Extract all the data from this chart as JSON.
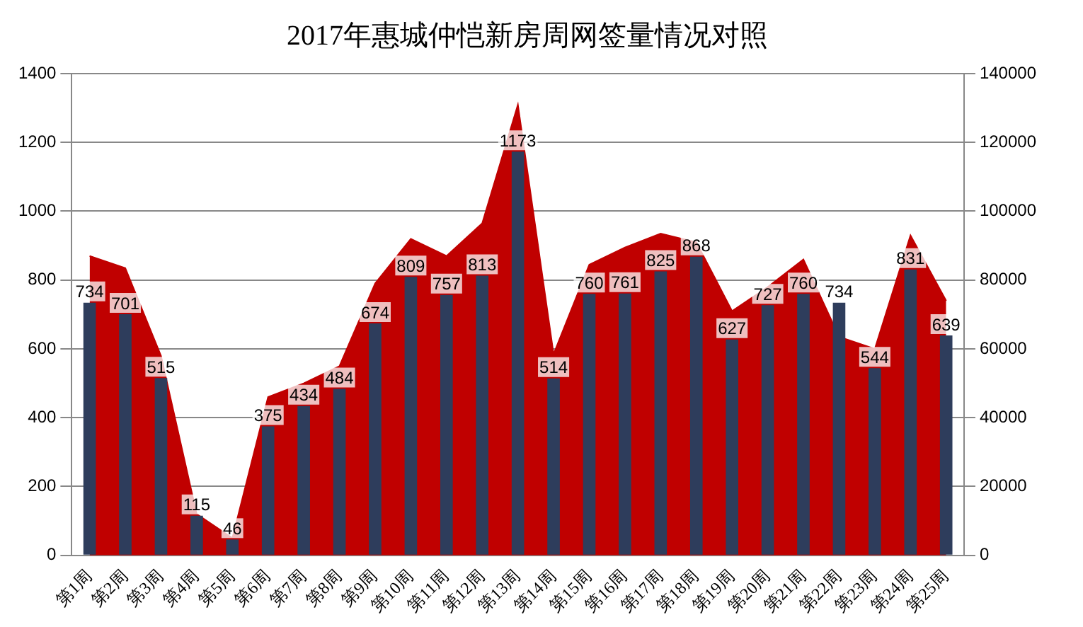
{
  "chart_data": {
    "type": "bar",
    "title": "2017年惠城仲恺新房周网签量情况对照",
    "categories": [
      "第1周",
      "第2周",
      "第3周",
      "第4周",
      "第5周",
      "第6周",
      "第7周",
      "第8周",
      "第9周",
      "第10周",
      "第11周",
      "第12周",
      "第13周",
      "第14周",
      "第15周",
      "第16周",
      "第17周",
      "第18周",
      "第19周",
      "第20周",
      "第21周",
      "第22周",
      "第23周",
      "第24周",
      "第25周"
    ],
    "series": [
      {
        "color": "#2e3d5c",
        "values": [
          734,
          701,
          515,
          115,
          46,
          375,
          434,
          484,
          674,
          809,
          757,
          813,
          1173,
          514,
          760,
          761,
          825,
          868,
          627,
          727,
          760,
          734,
          544,
          831,
          639
        ],
        "value_labels": [
          "734",
          "701",
          "515",
          "115",
          "46",
          "375",
          "434",
          "484",
          "674",
          "809",
          "757",
          "813",
          "1173",
          "514",
          "760",
          "761",
          "825",
          "868",
          "627",
          "727",
          "760",
          "734",
          "544",
          "831",
          "639"
        ]
      },
      {
        "type": "area",
        "axis": "y2",
        "color": "#c00000",
        "values": [
          87000,
          83500,
          58000,
          12000,
          5000,
          46000,
          50000,
          55000,
          79000,
          92000,
          87000,
          96500,
          131000,
          58500,
          84500,
          89500,
          93500,
          91000,
          71000,
          78000,
          86000,
          63500,
          60000,
          93000,
          74000
        ]
      }
    ],
    "ylim": [
      0,
      1400
    ],
    "yticks": [
      0,
      200,
      400,
      600,
      800,
      1000,
      1200,
      1400
    ],
    "y2lim": [
      0,
      140000
    ],
    "y2ticks": [
      0,
      20000,
      40000,
      60000,
      80000,
      100000,
      120000,
      140000
    ],
    "grid": "y",
    "legend": false
  }
}
